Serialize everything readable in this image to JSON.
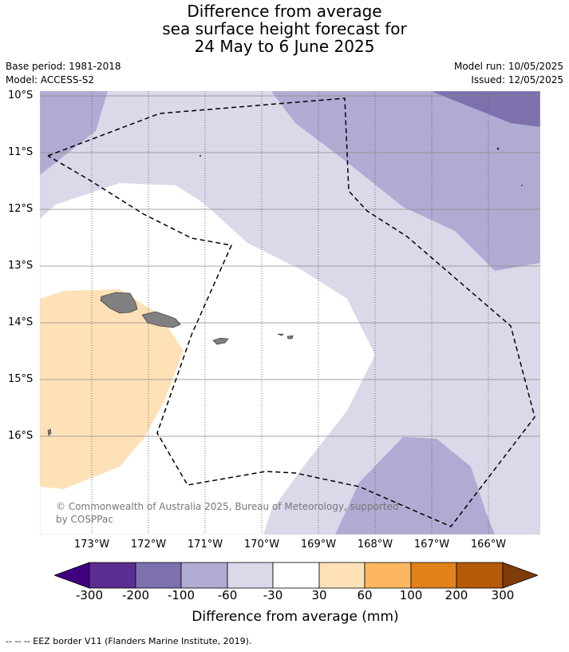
{
  "title": {
    "line1": "Difference from average",
    "line2": "sea surface height forecast for",
    "line3": "24 May to 6 June 2025"
  },
  "meta": {
    "base_period": "Base period: 1981-2018",
    "model": "Model: ACCESS-S2",
    "model_run": "Model run: 10/05/2025",
    "issued": "Issued: 12/05/2025"
  },
  "map": {
    "lat_labels": [
      "10°S",
      "11°S",
      "12°S",
      "13°S",
      "14°S",
      "15°S",
      "16°S"
    ],
    "lon_labels": [
      "173°W",
      "172°W",
      "171°W",
      "170°W",
      "169°W",
      "168°W",
      "167°W",
      "166°W"
    ],
    "copyright": "© Commonwealth of Australia 2025, Bureau of Meteorology, supported by COSPPac",
    "colors": {
      "m200_100": "#7e70ad",
      "m100_60": "#b0abd2",
      "m60_30": "#d9d9ea",
      "neutral": "#ffffff",
      "p30_60": "#fee1b7",
      "land": "#808080"
    }
  },
  "colorbar": {
    "ticks": [
      "-300",
      "-200",
      "-100",
      "-60",
      "-30",
      "30",
      "60",
      "100",
      "200",
      "300"
    ],
    "colors": [
      "#3f007d",
      "#5b2d90",
      "#7e70ad",
      "#b0abd2",
      "#d9d9ea",
      "#ffffff",
      "#fee1b7",
      "#fcb760",
      "#e3811b",
      "#b65909",
      "#7f3b08"
    ],
    "label": "Difference from average (mm)"
  },
  "footnote": "--  --  -- EEZ border V11 (Flanders Marine Institute, 2019)."
}
